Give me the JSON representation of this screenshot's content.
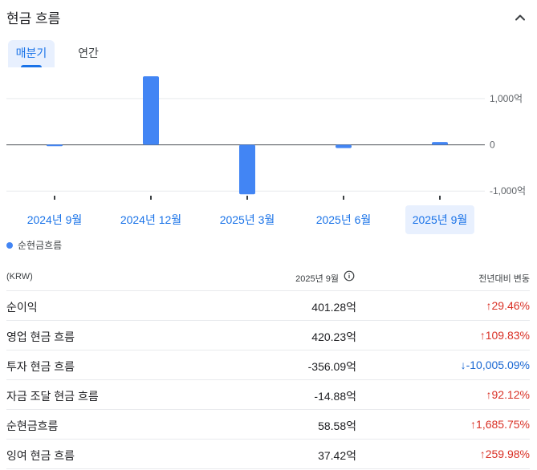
{
  "header": {
    "title": "현금 흐름",
    "collapse_icon": "chevron-up-icon"
  },
  "tabs": [
    {
      "label": "매분기",
      "active": true
    },
    {
      "label": "연간",
      "active": false
    }
  ],
  "chart_data": {
    "type": "bar",
    "categories": [
      "2024년 9월",
      "2024년 12월",
      "2025년 3월",
      "2025년 6월",
      "2025년 9월"
    ],
    "series": [
      {
        "name": "순현금흐름",
        "values": [
          4,
          1480,
          -1070,
          -70,
          58.58
        ],
        "color": "#4285f4"
      }
    ],
    "y_ticks": [
      {
        "value": 1000,
        "label": "1,000억"
      },
      {
        "value": 0,
        "label": "0"
      },
      {
        "value": -1000,
        "label": "-1,000억"
      }
    ],
    "ylim": [
      -1100,
      1500
    ],
    "selected_category": "2025년 9월",
    "legend_position": "bottom-left"
  },
  "table": {
    "unit_header": "(KRW)",
    "period_header": "2025년 9월",
    "change_header": "전년대비 변동",
    "rows": [
      {
        "name": "순이익",
        "value": "401.28억",
        "change": "29.46%",
        "direction": "up"
      },
      {
        "name": "영업 현금 흐름",
        "value": "420.23억",
        "change": "109.83%",
        "direction": "up"
      },
      {
        "name": "투자 현금 흐름",
        "value": "-356.09억",
        "change": "-10,005.09%",
        "direction": "down"
      },
      {
        "name": "자금 조달 현금 흐름",
        "value": "-14.88억",
        "change": "92.12%",
        "direction": "up"
      },
      {
        "name": "순현금흐름",
        "value": "58.58억",
        "change": "1,685.75%",
        "direction": "up"
      },
      {
        "name": "잉여 현금 흐름",
        "value": "37.42억",
        "change": "259.98%",
        "direction": "up"
      }
    ]
  },
  "colors": {
    "accent": "#1a73e8",
    "up": "#d93025",
    "down": "#1967d2",
    "bar": "#4285f4"
  }
}
